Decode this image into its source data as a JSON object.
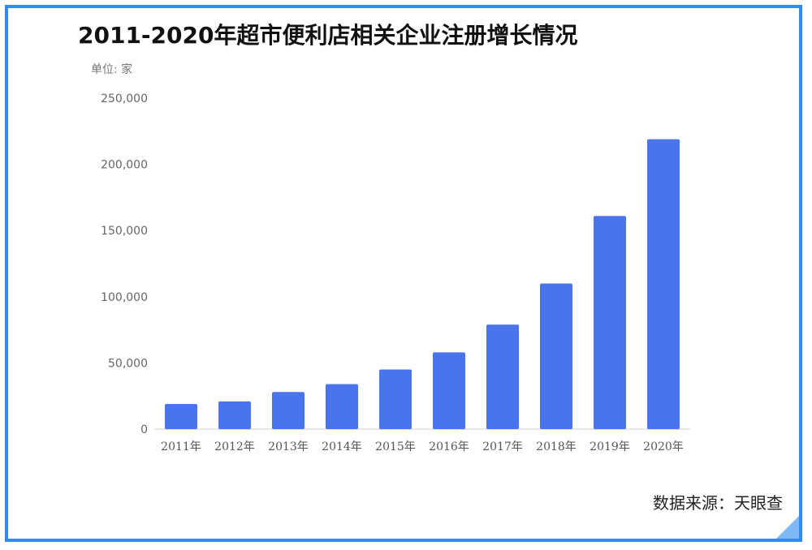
{
  "chart_data": {
    "type": "bar",
    "title": "2011-2020年超市便利店相关企业注册增长情况",
    "unit_label": "单位: 家",
    "categories": [
      "2011年",
      "2012年",
      "2013年",
      "2014年",
      "2015年",
      "2016年",
      "2017年",
      "2018年",
      "2019年",
      "2020年"
    ],
    "values": [
      19000,
      21000,
      28000,
      34000,
      45000,
      58000,
      79000,
      110000,
      161000,
      219000
    ],
    "yticks": [
      "0",
      "50,000",
      "100,000",
      "150,000",
      "200,000",
      "250,000"
    ],
    "ylim": [
      0,
      250000
    ],
    "bar_color": "#4a74ec",
    "grid": false,
    "legend": "none"
  },
  "source_text": "数据来源：天眼查",
  "colors": {
    "frame": "#2f8cf0",
    "bar": "#4a74ec"
  }
}
